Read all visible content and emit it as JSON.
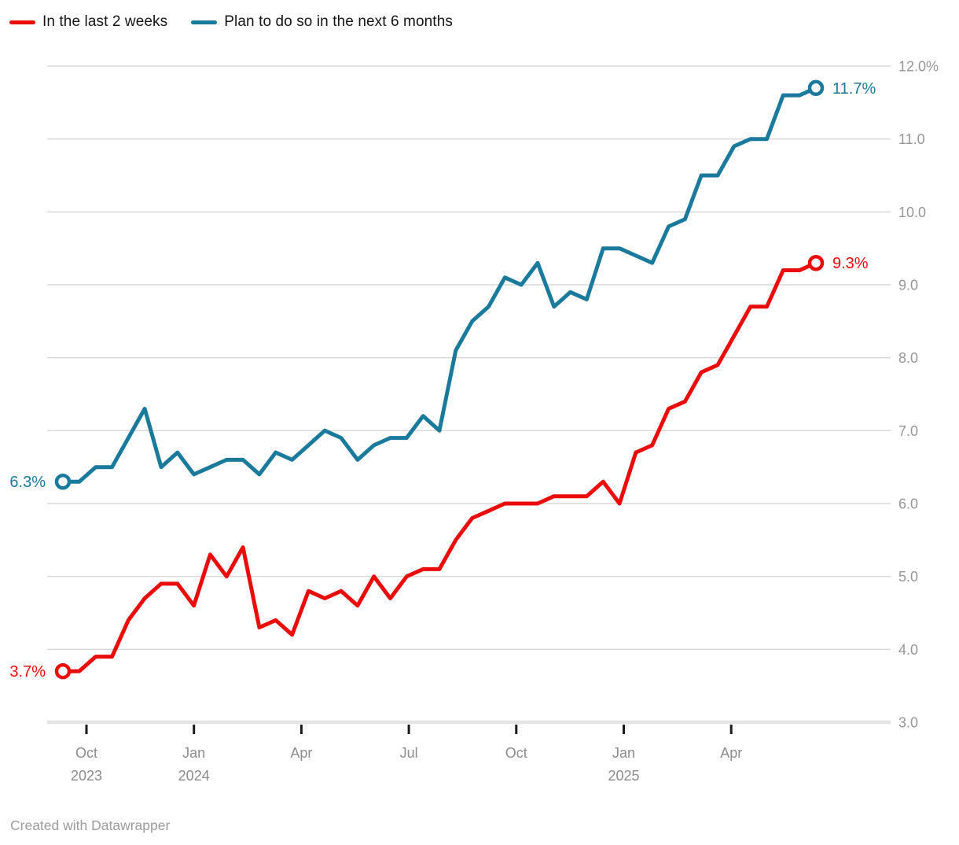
{
  "legend": {
    "items": [
      {
        "label": "In the last 2 weeks",
        "color": "#ea0b0b"
      },
      {
        "label": "Plan to do so in the next 6 months",
        "color": "#1a7a9b"
      }
    ]
  },
  "footer": {
    "credit": "Created with Datawrapper"
  },
  "chart_data": {
    "type": "line",
    "title": "",
    "unit": "%",
    "ylim": [
      3.0,
      12.0
    ],
    "grid": true,
    "legend_position": "top-left",
    "yticks": [
      {
        "value": 12,
        "label": "12.0%"
      },
      {
        "value": 11,
        "label": "11.0"
      },
      {
        "value": 10,
        "label": "10.0"
      },
      {
        "value": 9,
        "label": "9.0"
      },
      {
        "value": 8,
        "label": "8.0"
      },
      {
        "value": 7,
        "label": "7.0"
      },
      {
        "value": 6,
        "label": "6.0"
      },
      {
        "value": 5,
        "label": "5.0"
      },
      {
        "value": 4,
        "label": "4.0"
      },
      {
        "value": 3,
        "label": "3.0"
      }
    ],
    "xticks": [
      {
        "label": "Oct",
        "year": "2023"
      },
      {
        "label": "Jan",
        "year": "2024"
      },
      {
        "label": "Apr",
        "year": ""
      },
      {
        "label": "Jul",
        "year": ""
      },
      {
        "label": "Oct",
        "year": ""
      },
      {
        "label": "Jan",
        "year": "2025"
      },
      {
        "label": "Apr",
        "year": ""
      }
    ],
    "x_period": "biweekly, ~mid-Sep 2023 to ~mid-Jun 2025",
    "series": [
      {
        "name": "Plan to do so in the next 6 months",
        "color": "#1a7a9b",
        "start_label": "6.3%",
        "end_label": "11.7%",
        "values": [
          6.3,
          6.3,
          6.5,
          6.5,
          6.9,
          7.3,
          6.5,
          6.7,
          6.4,
          6.5,
          6.6,
          6.6,
          6.4,
          6.7,
          6.6,
          6.8,
          7.0,
          6.9,
          6.6,
          6.8,
          6.9,
          6.9,
          7.2,
          7.0,
          8.1,
          8.5,
          8.7,
          9.1,
          9.0,
          9.3,
          8.7,
          8.9,
          8.8,
          9.5,
          9.5,
          9.4,
          9.3,
          9.8,
          9.9,
          10.5,
          10.5,
          10.9,
          11.0,
          11.0,
          11.6,
          11.6,
          11.7
        ]
      },
      {
        "name": "In the last 2 weeks",
        "color": "#ea0b0b",
        "start_label": "3.7%",
        "end_label": "9.3%",
        "values": [
          3.7,
          3.7,
          3.9,
          3.9,
          4.4,
          4.7,
          4.9,
          4.9,
          4.6,
          5.3,
          5.0,
          5.4,
          4.3,
          4.4,
          4.2,
          4.8,
          4.7,
          4.8,
          4.6,
          5.0,
          4.7,
          5.0,
          5.1,
          5.1,
          5.5,
          5.8,
          5.9,
          6.0,
          6.0,
          6.0,
          6.1,
          6.1,
          6.1,
          6.3,
          6.0,
          6.7,
          6.8,
          7.3,
          7.4,
          7.8,
          7.9,
          8.3,
          8.7,
          8.7,
          9.2,
          9.2,
          9.3
        ]
      }
    ]
  }
}
